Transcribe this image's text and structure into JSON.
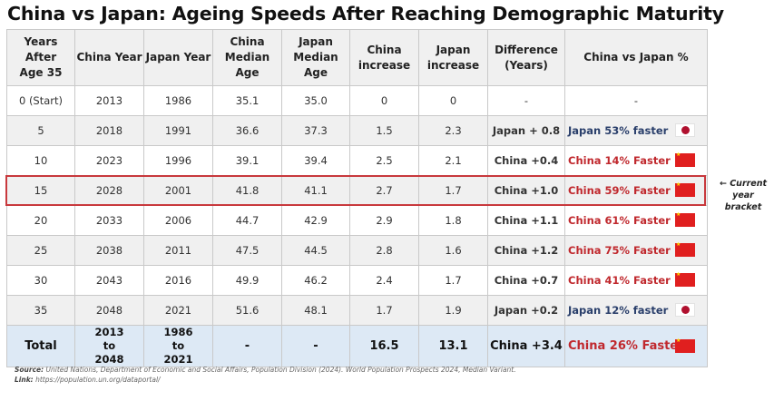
{
  "title": "China vs Japan: Ageing Speeds After Reaching Demographic Maturity",
  "colors": {
    "china_red": "#c0282d",
    "japan_navy": "#2a3f6b",
    "header_bg": "#f0f0f0",
    "total_bg": "#dde9f5",
    "highlight_border": "#c8393d"
  },
  "table": {
    "headers": [
      "Years After Age 35",
      "China Year",
      "Japan Year",
      "China Median Age",
      "Japan Median Age",
      "China increase",
      "Japan increase",
      "Difference (Years)",
      "China vs Japan %"
    ],
    "rows": [
      {
        "years": "0 (Start)",
        "china_year": "2013",
        "japan_year": "1986",
        "china_age": "35.1",
        "japan_age": "35.0",
        "china_inc": "0",
        "japan_inc": "0",
        "diff": "-",
        "pct": "-",
        "leader": "none",
        "flag": "none"
      },
      {
        "years": "5",
        "china_year": "2018",
        "japan_year": "1991",
        "china_age": "36.6",
        "japan_age": "37.3",
        "china_inc": "1.5",
        "japan_inc": "2.3",
        "diff": "Japan + 0.8",
        "pct": "Japan 53% faster",
        "leader": "japan",
        "flag": "japan-flag"
      },
      {
        "years": "10",
        "china_year": "2023",
        "japan_year": "1996",
        "china_age": "39.1",
        "japan_age": "39.4",
        "china_inc": "2.5",
        "japan_inc": "2.1",
        "diff": "China +0.4",
        "pct": "China 14% Faster",
        "leader": "china",
        "flag": "china-flag"
      },
      {
        "years": "15",
        "china_year": "2028",
        "japan_year": "2001",
        "china_age": "41.8",
        "japan_age": "41.1",
        "china_inc": "2.7",
        "japan_inc": "1.7",
        "diff": "China +1.0",
        "pct": "China 59% Faster",
        "leader": "china",
        "flag": "china-flag",
        "highlighted": true
      },
      {
        "years": "20",
        "china_year": "2033",
        "japan_year": "2006",
        "china_age": "44.7",
        "japan_age": "42.9",
        "china_inc": "2.9",
        "japan_inc": "1.8",
        "diff": "China +1.1",
        "pct": "China 61% Faster",
        "leader": "china",
        "flag": "china-flag"
      },
      {
        "years": "25",
        "china_year": "2038",
        "japan_year": "2011",
        "china_age": "47.5",
        "japan_age": "44.5",
        "china_inc": "2.8",
        "japan_inc": "1.6",
        "diff": "China +1.2",
        "pct": "China 75% Faster",
        "leader": "china",
        "flag": "china-flag"
      },
      {
        "years": "30",
        "china_year": "2043",
        "japan_year": "2016",
        "china_age": "49.9",
        "japan_age": "46.2",
        "china_inc": "2.4",
        "japan_inc": "1.7",
        "diff": "China +0.7",
        "pct": "China 41% Faster",
        "leader": "china",
        "flag": "china-flag"
      },
      {
        "years": "35",
        "china_year": "2048",
        "japan_year": "2021",
        "china_age": "51.6",
        "japan_age": "48.1",
        "china_inc": "1.7",
        "japan_inc": "1.9",
        "diff": "Japan +0.2",
        "pct": "Japan 12% faster",
        "leader": "japan",
        "flag": "japan-flag"
      }
    ],
    "total": {
      "label": "Total",
      "china_year": "2013 to 2048",
      "japan_year": "1986 to 2021",
      "china_age": "-",
      "japan_age": "-",
      "china_inc": "16.5",
      "japan_inc": "13.1",
      "diff": "China +3.4",
      "pct": "China 26% Faster",
      "leader": "china",
      "flag": "china-flag"
    }
  },
  "annotation": "← Current year bracket",
  "footer": {
    "source_label": "Source:",
    "source_text": " United Nations, Department of Economic and Social Affairs, Population Division (2024). World Population Prospects 2024, Median Variant.",
    "link_label": "Link:",
    "link_text": " https://population.un.org/dataportal/"
  }
}
